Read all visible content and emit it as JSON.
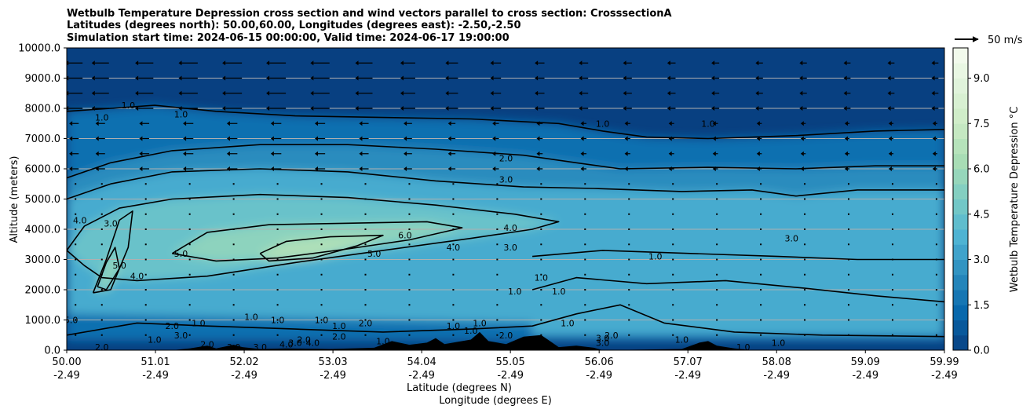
{
  "chart_data": {
    "type": "heatmap",
    "title_lines": [
      "Wetbulb Temperature Depression cross section and wind vectors parallel to cross section: CrosssectionA",
      "Latitudes (degrees north): 50.00,60.00, Longitudes (degrees east): -2.50,-2.50",
      "Simulation start time: 2024-06-15 00:00:00, Valid time: 2024-06-17 19:00:00"
    ],
    "xlabel_lines": [
      "Latitude (degrees N)",
      "Longitude (degrees E)"
    ],
    "ylabel": "Altitude (meters)",
    "x_range": [
      50.0,
      59.99
    ],
    "ylim": [
      0,
      10000
    ],
    "x_ticks": [
      {
        "lat": "50.00",
        "lon": "-2.49",
        "v": 50.0
      },
      {
        "lat": "51.01",
        "lon": "-2.49",
        "v": 51.01
      },
      {
        "lat": "52.02",
        "lon": "-2.49",
        "v": 52.02
      },
      {
        "lat": "53.03",
        "lon": "-2.49",
        "v": 53.03
      },
      {
        "lat": "54.04",
        "lon": "-2.49",
        "v": 54.04
      },
      {
        "lat": "55.05",
        "lon": "-2.49",
        "v": 55.05
      },
      {
        "lat": "56.06",
        "lon": "-2.49",
        "v": 56.06
      },
      {
        "lat": "57.07",
        "lon": "-2.49",
        "v": 57.07
      },
      {
        "lat": "58.08",
        "lon": "-2.49",
        "v": 58.08
      },
      {
        "lat": "59.09",
        "lon": "-2.49",
        "v": 59.09
      },
      {
        "lat": "59.99",
        "lon": "-2.49",
        "v": 59.99
      }
    ],
    "y_ticks": [
      {
        "label": "0.0",
        "v": 0
      },
      {
        "label": "1000.0",
        "v": 1000
      },
      {
        "label": "2000.0",
        "v": 2000
      },
      {
        "label": "3000.0",
        "v": 3000
      },
      {
        "label": "4000.0",
        "v": 4000
      },
      {
        "label": "5000.0",
        "v": 5000
      },
      {
        "label": "6000.0",
        "v": 6000
      },
      {
        "label": "7000.0",
        "v": 7000
      },
      {
        "label": "8000.0",
        "v": 8000
      },
      {
        "label": "9000.0",
        "v": 9000
      },
      {
        "label": "10000.0",
        "v": 10000
      }
    ],
    "grid_horizontal": true,
    "colorbar": {
      "label": "Wetbulb Temperature Depression °C",
      "range": [
        0,
        10
      ],
      "ticks": [
        {
          "label": "0.0",
          "v": 0
        },
        {
          "label": "1.5",
          "v": 1.5
        },
        {
          "label": "3.0",
          "v": 3.0
        },
        {
          "label": "4.5",
          "v": 4.5
        },
        {
          "label": "6.0",
          "v": 6.0
        },
        {
          "label": "7.5",
          "v": 7.5
        },
        {
          "label": "9.0",
          "v": 9.0
        }
      ],
      "colormap": "GnBu_r",
      "colors": [
        "#084081",
        "#0868ac",
        "#2b8cbe",
        "#4eb3d3",
        "#7bccc4",
        "#a8ddb5",
        "#ccebc5",
        "#e0f3db",
        "#f7fcf0"
      ]
    },
    "quiver_key": {
      "label": "50 m/s",
      "speed": 50
    },
    "wind": {
      "lats": [
        50.1,
        50.4,
        50.9,
        51.4,
        51.9,
        52.4,
        52.9,
        53.4,
        53.9,
        54.4,
        54.9,
        55.4,
        55.9,
        56.4,
        56.9,
        57.4,
        57.9,
        58.4,
        58.9,
        59.4,
        59.9
      ],
      "upper_levels": [
        9500,
        9000,
        8500,
        8000,
        7500,
        7000,
        6500,
        6000
      ],
      "upper_speeds_ms": [
        -30,
        -30,
        -32,
        -34,
        -35,
        -35,
        -34,
        -30,
        -25,
        -20,
        -16,
        -14,
        -13,
        -12,
        -11,
        -10,
        -9,
        -9,
        -8,
        -8,
        -8
      ]
    },
    "contours": [
      {
        "label": "1.0",
        "v": 1.0,
        "pts": [
          [
            50.0,
            7900
          ],
          [
            50.5,
            8000
          ],
          [
            51.0,
            8100
          ],
          [
            51.7,
            7900
          ],
          [
            52.6,
            7750
          ],
          [
            53.6,
            7700
          ],
          [
            54.6,
            7650
          ],
          [
            55.6,
            7500
          ],
          [
            56.1,
            7250
          ],
          [
            56.6,
            7050
          ],
          [
            57.3,
            7000
          ],
          [
            58.3,
            7100
          ],
          [
            59.2,
            7250
          ],
          [
            59.99,
            7300
          ]
        ]
      },
      {
        "label": "2.0",
        "v": 2.0,
        "pts": [
          [
            50.0,
            5700
          ],
          [
            50.5,
            6200
          ],
          [
            51.2,
            6600
          ],
          [
            52.2,
            6800
          ],
          [
            53.2,
            6800
          ],
          [
            54.2,
            6650
          ],
          [
            55.2,
            6450
          ],
          [
            55.8,
            6200
          ],
          [
            56.3,
            6000
          ],
          [
            57.3,
            6050
          ],
          [
            58.3,
            6000
          ],
          [
            59.2,
            6100
          ],
          [
            59.99,
            6100
          ]
        ]
      },
      {
        "label": "3.0",
        "v": 3.0,
        "pts": [
          [
            50.0,
            5000
          ],
          [
            50.5,
            5500
          ],
          [
            51.2,
            5900
          ],
          [
            52.2,
            6000
          ],
          [
            53.2,
            5900
          ],
          [
            54.2,
            5600
          ],
          [
            55.2,
            5400
          ],
          [
            56.0,
            5350
          ],
          [
            57.0,
            5250
          ],
          [
            57.8,
            5300
          ],
          [
            58.3,
            5100
          ],
          [
            59.0,
            5300
          ],
          [
            59.99,
            5300
          ]
        ]
      },
      {
        "label": "4.0",
        "v": 4.0,
        "pts": [
          [
            50.0,
            3300
          ],
          [
            50.2,
            4100
          ],
          [
            50.6,
            4700
          ],
          [
            51.2,
            5000
          ],
          [
            52.2,
            5150
          ],
          [
            53.2,
            5050
          ],
          [
            54.2,
            4800
          ],
          [
            55.1,
            4500
          ],
          [
            55.6,
            4250
          ],
          [
            55.3,
            4000
          ],
          [
            54.6,
            3700
          ],
          [
            53.6,
            3300
          ],
          [
            52.6,
            2900
          ],
          [
            51.6,
            2450
          ],
          [
            50.8,
            2300
          ],
          [
            50.4,
            2400
          ],
          [
            50.2,
            2800
          ],
          [
            50.0,
            3300
          ]
        ]
      },
      {
        "label": "5.0",
        "v": 5.0,
        "pts": [
          [
            51.2,
            3200
          ],
          [
            51.6,
            3900
          ],
          [
            52.3,
            4150
          ],
          [
            53.2,
            4200
          ],
          [
            54.1,
            4250
          ],
          [
            54.5,
            4050
          ],
          [
            53.9,
            3650
          ],
          [
            53.2,
            3350
          ],
          [
            52.4,
            3050
          ],
          [
            51.7,
            2950
          ],
          [
            51.2,
            3200
          ]
        ]
      },
      {
        "label": "6.0",
        "v": 6.0,
        "pts": [
          [
            52.2,
            3200
          ],
          [
            52.5,
            3600
          ],
          [
            53.0,
            3750
          ],
          [
            53.6,
            3800
          ],
          [
            53.3,
            3450
          ],
          [
            52.8,
            3050
          ],
          [
            52.3,
            2950
          ],
          [
            52.2,
            3200
          ]
        ]
      },
      {
        "label": "4.0",
        "v": 4.0,
        "pts": [
          [
            50.3,
            1900
          ],
          [
            50.45,
            3000
          ],
          [
            50.6,
            4300
          ],
          [
            50.75,
            4600
          ],
          [
            50.7,
            3400
          ],
          [
            50.5,
            2000
          ],
          [
            50.3,
            1900
          ]
        ]
      },
      {
        "label": "5.0",
        "v": 5.0,
        "pts": [
          [
            50.35,
            2100
          ],
          [
            50.45,
            2900
          ],
          [
            50.55,
            3400
          ],
          [
            50.6,
            2700
          ],
          [
            50.45,
            2000
          ],
          [
            50.35,
            2100
          ]
        ]
      },
      {
        "label": "1.0",
        "v": 1.0,
        "pts": [
          [
            50.0,
            500
          ],
          [
            50.8,
            900
          ],
          [
            51.6,
            800
          ],
          [
            52.6,
            700
          ],
          [
            53.6,
            600
          ],
          [
            54.6,
            700
          ],
          [
            55.3,
            800
          ],
          [
            55.8,
            1200
          ],
          [
            56.3,
            1500
          ],
          [
            56.8,
            900
          ],
          [
            57.6,
            600
          ],
          [
            58.6,
            500
          ],
          [
            59.99,
            450
          ]
        ]
      },
      {
        "label": "3.0",
        "v": 3.0,
        "pts": [
          [
            55.3,
            3100
          ],
          [
            56.1,
            3300
          ],
          [
            57.1,
            3200
          ],
          [
            58.1,
            3100
          ],
          [
            59.0,
            3000
          ],
          [
            59.99,
            3000
          ]
        ]
      },
      {
        "label": "2.0",
        "v": 2.0,
        "pts": [
          [
            55.3,
            2000
          ],
          [
            55.8,
            2400
          ],
          [
            56.6,
            2200
          ],
          [
            57.5,
            2300
          ],
          [
            58.4,
            2050
          ],
          [
            59.2,
            1800
          ],
          [
            59.99,
            1600
          ]
        ]
      }
    ],
    "contour_labels": [
      {
        "text": "1.0",
        "lat": 50.4,
        "alt": 7700
      },
      {
        "text": "1.0",
        "lat": 50.7,
        "alt": 8100
      },
      {
        "text": "1.0",
        "lat": 51.3,
        "alt": 7800
      },
      {
        "text": "1.0",
        "lat": 56.1,
        "alt": 7500
      },
      {
        "text": "1.0",
        "lat": 57.3,
        "alt": 7500
      },
      {
        "text": "2.0",
        "lat": 55.0,
        "alt": 6350
      },
      {
        "text": "3.0",
        "lat": 55.0,
        "alt": 5650
      },
      {
        "text": "4.0",
        "lat": 50.15,
        "alt": 4300
      },
      {
        "text": "3.0",
        "lat": 50.5,
        "alt": 4200
      },
      {
        "text": "5.0",
        "lat": 51.3,
        "alt": 3200
      },
      {
        "text": "6.0",
        "lat": 53.85,
        "alt": 3800
      },
      {
        "text": "5.0",
        "lat": 53.5,
        "alt": 3200
      },
      {
        "text": "4.0",
        "lat": 54.4,
        "alt": 3400
      },
      {
        "text": "4.0",
        "lat": 55.05,
        "alt": 4050
      },
      {
        "text": "3.0",
        "lat": 55.05,
        "alt": 3400
      },
      {
        "text": "5.0",
        "lat": 50.6,
        "alt": 2800
      },
      {
        "text": "4.0",
        "lat": 50.8,
        "alt": 2450
      },
      {
        "text": "3.0",
        "lat": 58.25,
        "alt": 3700
      },
      {
        "text": "1.0",
        "lat": 56.7,
        "alt": 3100
      },
      {
        "text": "1.0",
        "lat": 55.4,
        "alt": 2400
      },
      {
        "text": "1.0",
        "lat": 55.1,
        "alt": 1950
      },
      {
        "text": "1.0",
        "lat": 55.6,
        "alt": 1950
      },
      {
        "text": "1.0",
        "lat": 55.7,
        "alt": 900
      },
      {
        "text": "1.0",
        "lat": 52.1,
        "alt": 1100
      },
      {
        "text": "1.0",
        "lat": 52.4,
        "alt": 1000
      },
      {
        "text": "1.0",
        "lat": 52.9,
        "alt": 1000
      },
      {
        "text": "1.0",
        "lat": 53.1,
        "alt": 800
      },
      {
        "text": "1.0",
        "lat": 54.4,
        "alt": 800
      },
      {
        "text": "1.0",
        "lat": 54.7,
        "alt": 900
      },
      {
        "text": "1.0",
        "lat": 54.6,
        "alt": 650
      },
      {
        "text": "2.0",
        "lat": 53.1,
        "alt": 450
      },
      {
        "text": "2.0",
        "lat": 53.4,
        "alt": 900
      },
      {
        "text": "2.0",
        "lat": 55.0,
        "alt": 500
      },
      {
        "text": "2.0",
        "lat": 51.2,
        "alt": 800
      },
      {
        "text": "3.0",
        "lat": 51.3,
        "alt": 500
      },
      {
        "text": "2.0",
        "lat": 52.7,
        "alt": 350
      },
      {
        "text": "3.0",
        "lat": 52.6,
        "alt": 250
      },
      {
        "text": "3.0",
        "lat": 52.2,
        "alt": 100
      },
      {
        "text": "4.0",
        "lat": 52.5,
        "alt": 200
      },
      {
        "text": "4.0",
        "lat": 52.8,
        "alt": 250
      },
      {
        "text": "5.0",
        "lat": 50.05,
        "alt": 1000
      },
      {
        "text": "1.0",
        "lat": 51.0,
        "alt": 350
      },
      {
        "text": "1.0",
        "lat": 53.6,
        "alt": 300
      },
      {
        "text": "2.0",
        "lat": 56.2,
        "alt": 500
      },
      {
        "text": "3.0",
        "lat": 56.1,
        "alt": 400
      },
      {
        "text": "3.0",
        "lat": 56.1,
        "alt": 250
      },
      {
        "text": "1.0",
        "lat": 57.0,
        "alt": 350
      },
      {
        "text": "1.0",
        "lat": 57.7,
        "alt": 100
      },
      {
        "text": "1.0",
        "lat": 58.1,
        "alt": 250
      },
      {
        "text": "2.0",
        "lat": 50.4,
        "alt": 100
      },
      {
        "text": "3.0",
        "lat": 51.9,
        "alt": 100
      },
      {
        "text": "2.0",
        "lat": 51.6,
        "alt": 200
      },
      {
        "text": "1.0",
        "lat": 51.5,
        "alt": 900
      }
    ],
    "terrain": [
      [
        51.2,
        0
      ],
      [
        51.4,
        60
      ],
      [
        51.6,
        150
      ],
      [
        51.7,
        60
      ],
      [
        51.9,
        180
      ],
      [
        52.0,
        100
      ],
      [
        52.2,
        40
      ],
      [
        52.5,
        60
      ],
      [
        53.0,
        40
      ],
      [
        53.5,
        80
      ],
      [
        53.7,
        300
      ],
      [
        53.9,
        180
      ],
      [
        54.1,
        250
      ],
      [
        54.2,
        400
      ],
      [
        54.3,
        200
      ],
      [
        54.6,
        350
      ],
      [
        54.7,
        600
      ],
      [
        54.8,
        300
      ],
      [
        55.0,
        200
      ],
      [
        55.2,
        450
      ],
      [
        55.4,
        500
      ],
      [
        55.5,
        300
      ],
      [
        55.6,
        100
      ],
      [
        55.8,
        150
      ],
      [
        56.0,
        80
      ],
      [
        56.1,
        0
      ],
      [
        57.0,
        40
      ],
      [
        57.2,
        250
      ],
      [
        57.3,
        300
      ],
      [
        57.4,
        150
      ],
      [
        57.6,
        60
      ],
      [
        57.8,
        0
      ]
    ]
  }
}
